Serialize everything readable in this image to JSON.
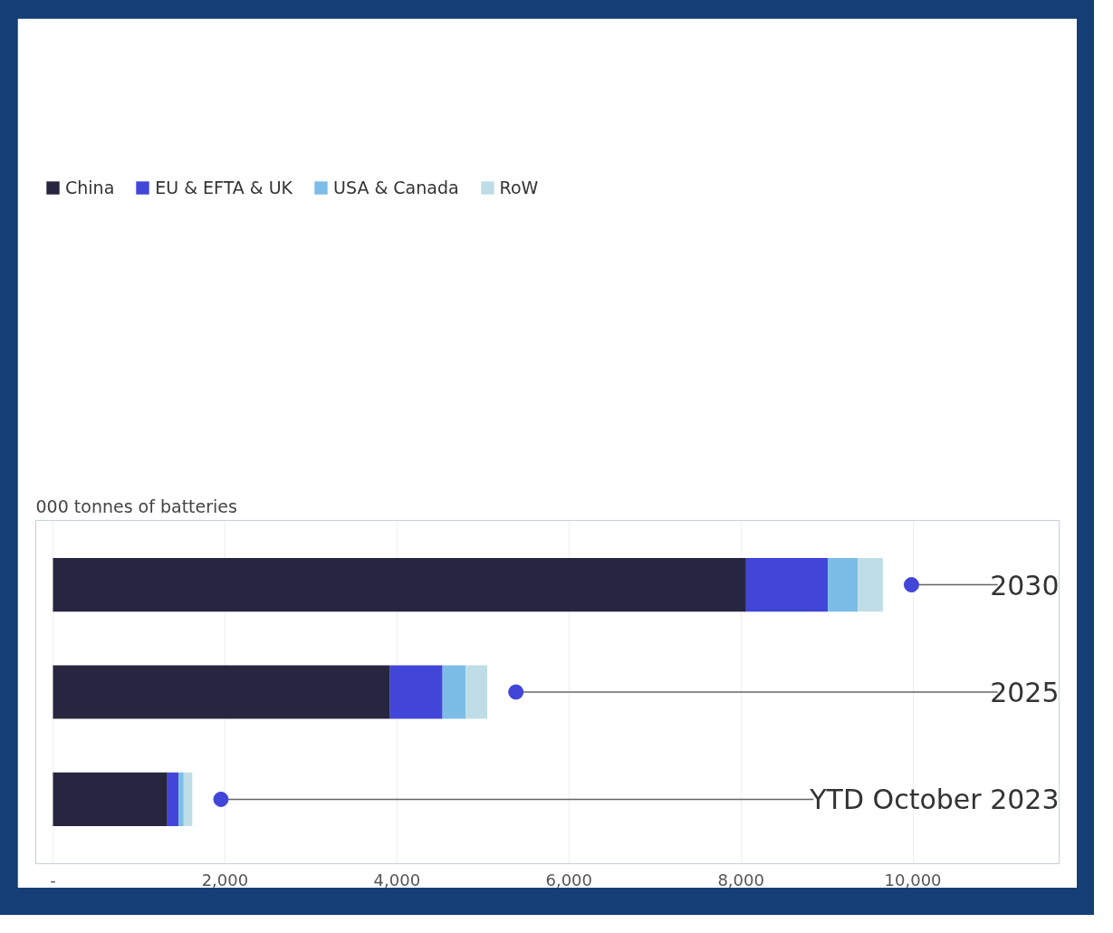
{
  "chart_data": {
    "type": "bar",
    "orientation": "horizontal",
    "stacked": true,
    "ylabel": "000 tonnes of batteries",
    "categories": [
      "2030",
      "2025",
      "YTD October 2023"
    ],
    "series": [
      {
        "name": "China",
        "color": "#272641",
        "values": [
          8060,
          3920,
          1330
        ]
      },
      {
        "name": "EU & EFTA & UK",
        "color": "#4146d8",
        "values": [
          950,
          610,
          130
        ]
      },
      {
        "name": "USA & Canada",
        "color": "#7cbde8",
        "values": [
          350,
          270,
          60
        ]
      },
      {
        "name": "RoW",
        "color": "#bfdde6",
        "values": [
          290,
          250,
          100
        ]
      }
    ],
    "xlim": [
      -200,
      11700
    ],
    "xticks": [
      {
        "value": 0,
        "label": "-"
      },
      {
        "value": 2000,
        "label": "2,000"
      },
      {
        "value": 4000,
        "label": "4,000"
      },
      {
        "value": 6000,
        "label": "6,000"
      },
      {
        "value": 8000,
        "label": "8,000"
      },
      {
        "value": 10000,
        "label": "10,000"
      }
    ],
    "grid": "x",
    "legend": "top"
  }
}
